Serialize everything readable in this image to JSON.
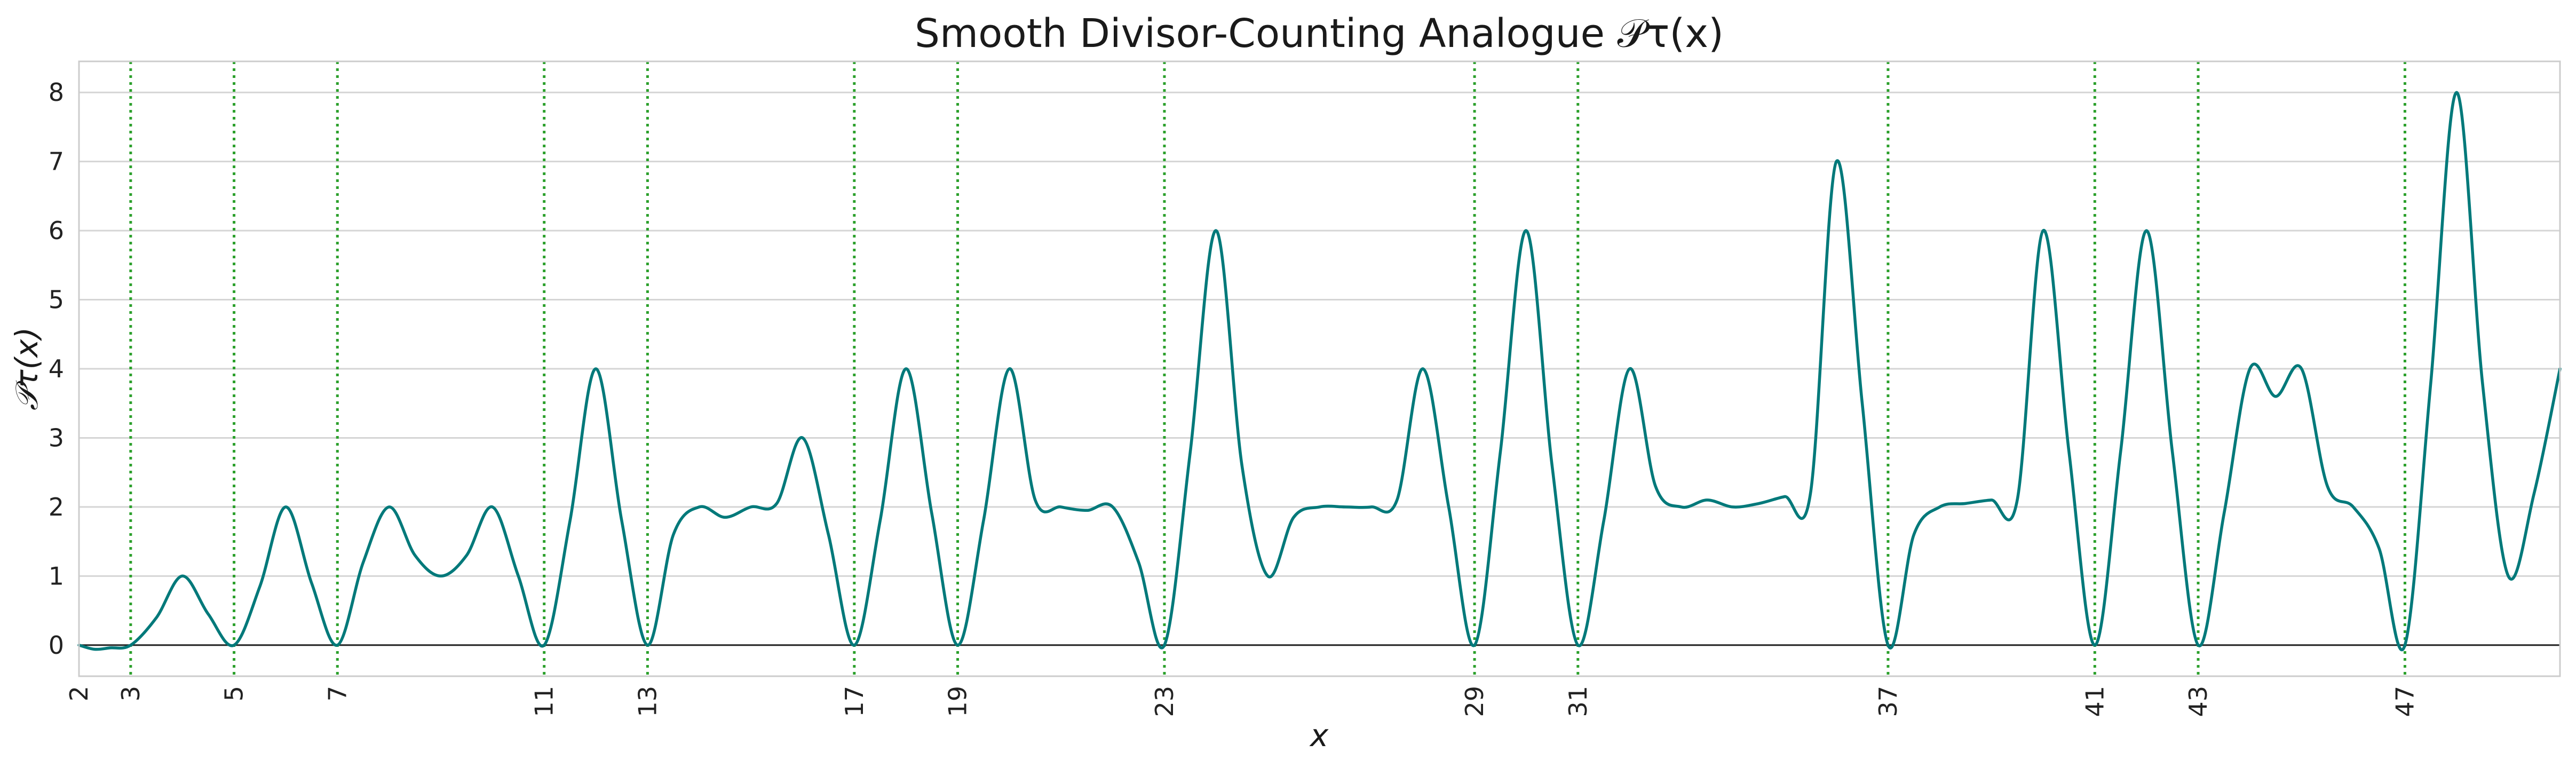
{
  "chart_data": {
    "type": "line",
    "title": "Smooth Divisor-Counting Analogue 𝒫τ(x)",
    "xlabel": "x",
    "ylabel": "𝒫τ(x)",
    "xlim": [
      2,
      50
    ],
    "ylim": [
      -0.45,
      8.45
    ],
    "y_ticks": [
      0,
      1,
      2,
      3,
      4,
      5,
      6,
      7,
      8
    ],
    "x_ticks": [
      2,
      3,
      5,
      7,
      11,
      13,
      17,
      19,
      23,
      29,
      31,
      37,
      41,
      43,
      47
    ],
    "prime_markers": [
      3,
      5,
      7,
      11,
      13,
      17,
      19,
      23,
      29,
      31,
      37,
      41,
      43,
      47
    ],
    "grid": "horizontal",
    "legend": "none",
    "series": [
      {
        "x": [
          2,
          2.3,
          2.6,
          3,
          3.5,
          4,
          4.5,
          5,
          5.5,
          6,
          6.5,
          7,
          7.5,
          8,
          8.5,
          9,
          9.5,
          10,
          10.5,
          11,
          11.5,
          12,
          12.5,
          13,
          13.5,
          14,
          14.5,
          15,
          15.5,
          16,
          16.5,
          17,
          17.5,
          18,
          18.5,
          19,
          19.5,
          20,
          20.5,
          21,
          21.5,
          22,
          22.5,
          23,
          23.5,
          24,
          24.5,
          25,
          25.5,
          26,
          26.5,
          27,
          27.5,
          28,
          28.5,
          29,
          29.5,
          30,
          30.5,
          31,
          31.5,
          32,
          32.5,
          33,
          33.5,
          34,
          34.5,
          35,
          35.5,
          36,
          36.5,
          37,
          37.5,
          38,
          38.5,
          39,
          39.5,
          40,
          40.5,
          41,
          41.5,
          42,
          42.5,
          43,
          43.5,
          44,
          44.5,
          45,
          45.5,
          46,
          46.5,
          47,
          47.5,
          48,
          48.5,
          49,
          49.5,
          50
        ],
        "y": [
          0,
          -0.06,
          -0.04,
          0,
          0.4,
          1,
          0.45,
          0,
          0.85,
          2,
          0.9,
          0,
          1.2,
          2,
          1.3,
          1,
          1.3,
          2,
          1.0,
          0,
          1.8,
          4,
          1.8,
          0,
          1.6,
          2,
          1.85,
          2,
          2.05,
          3,
          1.6,
          0,
          1.8,
          4,
          1.9,
          0,
          1.8,
          4,
          2.1,
          2,
          1.95,
          2,
          1.2,
          0,
          2.8,
          6,
          2.6,
          1,
          1.85,
          2,
          2.0,
          2,
          2.1,
          4,
          2.0,
          0,
          2.8,
          6,
          2.6,
          0,
          1.8,
          4,
          2.3,
          2,
          2.1,
          2,
          2.05,
          2.15,
          2.2,
          7,
          3.5,
          0,
          1.6,
          2,
          2.05,
          2.1,
          2.1,
          6,
          2.8,
          0,
          2.8,
          6,
          2.8,
          0,
          1.9,
          4,
          3.6,
          4,
          2.3,
          2,
          1.4,
          0,
          3.8,
          8,
          3.8,
          1,
          2.2,
          4
        ]
      }
    ]
  }
}
